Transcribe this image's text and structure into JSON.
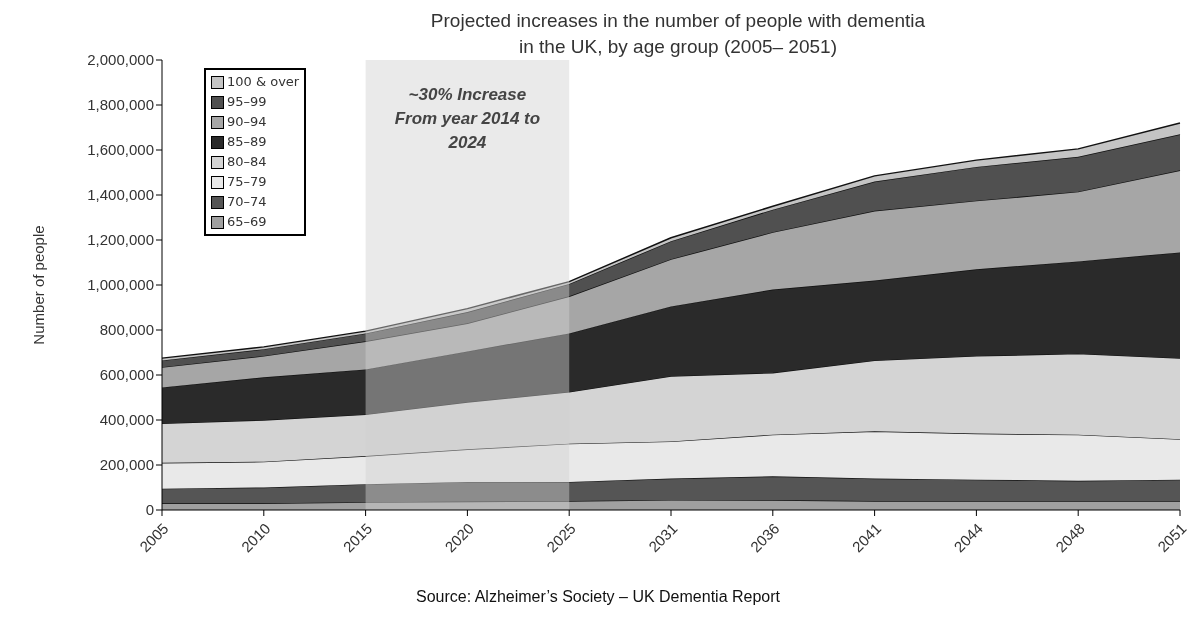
{
  "chart_data": {
    "type": "area",
    "stacked": true,
    "title": "Projected increases in the number of people with dementia in the UK, by age group (2005– 2051)",
    "ylabel": "Number of people",
    "categories": [
      "2005",
      "2010",
      "2015",
      "2020",
      "2025",
      "2031",
      "2036",
      "2041",
      "2044",
      "2048",
      "2051"
    ],
    "series": [
      {
        "name": "65–69",
        "color": "#a0a0a0",
        "values": [
          30000,
          30000,
          35000,
          38000,
          40000,
          45000,
          45000,
          40000,
          40000,
          40000,
          40000
        ]
      },
      {
        "name": "70–74",
        "color": "#555555",
        "values": [
          65000,
          70000,
          80000,
          87000,
          85000,
          95000,
          105000,
          100000,
          95000,
          90000,
          95000
        ]
      },
      {
        "name": "75–79",
        "color": "#e9e9e9",
        "values": [
          115000,
          115000,
          125000,
          145000,
          170000,
          165000,
          185000,
          210000,
          205000,
          205000,
          180000
        ]
      },
      {
        "name": "80–84",
        "color": "#d4d4d4",
        "values": [
          175000,
          185000,
          185000,
          210000,
          230000,
          290000,
          275000,
          315000,
          345000,
          360000,
          360000
        ]
      },
      {
        "name": "85–89",
        "color": "#2a2a2a",
        "values": [
          160000,
          190000,
          200000,
          225000,
          260000,
          310000,
          370000,
          355000,
          385000,
          410000,
          470000
        ]
      },
      {
        "name": "90–94",
        "color": "#a6a6a6",
        "values": [
          90000,
          95000,
          125000,
          125000,
          165000,
          210000,
          255000,
          310000,
          305000,
          310000,
          365000
        ]
      },
      {
        "name": "95–99",
        "color": "#505050",
        "values": [
          30000,
          30000,
          35000,
          50000,
          55000,
          80000,
          100000,
          130000,
          150000,
          155000,
          160000
        ]
      },
      {
        "name": "100 & over",
        "color": "#c4c4c4",
        "values": [
          10000,
          10000,
          10000,
          15000,
          10000,
          15000,
          15000,
          25000,
          30000,
          35000,
          50000
        ]
      }
    ],
    "ylim": [
      0,
      2000000
    ],
    "yticks": [
      0,
      {
        "value": 200000,
        "label": "200,000"
      },
      {
        "value": 400000,
        "label": "400,000"
      },
      {
        "value": 600000,
        "label": "600,000"
      },
      {
        "value": 800000,
        "label": "800,000"
      },
      {
        "value": 1000000,
        "label": "1,000,000"
      },
      {
        "value": 1200000,
        "label": "1,200,000"
      },
      {
        "value": 1400000,
        "label": "1,400,000"
      },
      {
        "value": 1600000,
        "label": "1,600,000"
      },
      {
        "value": 1800000,
        "label": "1,800,000"
      },
      {
        "value": 2000000,
        "label": "2,000,000"
      }
    ],
    "grid": false,
    "legend": "top left",
    "bands": [
      {
        "axis": "x",
        "from": "2015",
        "to": "2025",
        "label": "~30% Increase From year 2014 to 2024",
        "color": "#d0d0d0"
      }
    ],
    "annotations": [
      "Source: Alzheimer’s Society – UK Dementia Report"
    ]
  }
}
